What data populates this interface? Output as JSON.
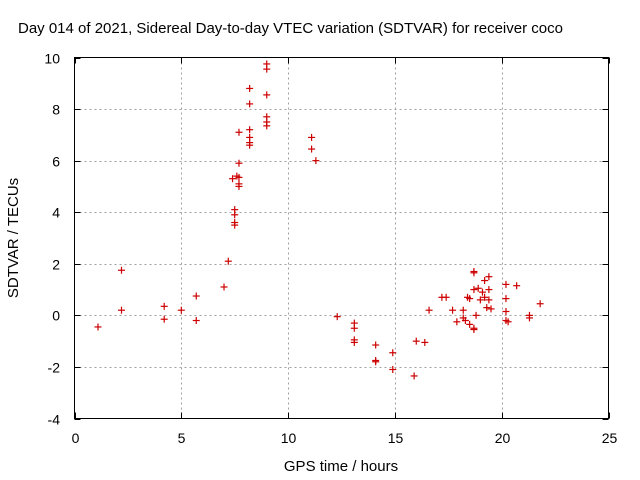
{
  "chart_data": {
    "type": "scatter",
    "title": "Day 014 of 2021, Sidereal Day-to-day VTEC variation (SDTVAR) for receiver coco",
    "xlabel": "GPS time / hours",
    "ylabel": "SDTVAR / TECUs",
    "xlim": [
      0,
      25
    ],
    "ylim": [
      -4,
      10
    ],
    "xticks": [
      0,
      5,
      10,
      15,
      20,
      25
    ],
    "yticks": [
      -4,
      -2,
      0,
      2,
      4,
      6,
      8,
      10
    ],
    "grid": true,
    "marker": "+",
    "color": "#cc0000",
    "series": [
      {
        "name": "SDTVAR",
        "points": [
          [
            1.1,
            -0.45
          ],
          [
            2.2,
            1.75
          ],
          [
            2.2,
            0.2
          ],
          [
            4.2,
            0.35
          ],
          [
            4.2,
            -0.15
          ],
          [
            5.0,
            0.2
          ],
          [
            5.7,
            0.75
          ],
          [
            5.7,
            -0.2
          ],
          [
            7.0,
            1.1
          ],
          [
            7.2,
            2.1
          ],
          [
            7.4,
            5.3
          ],
          [
            7.5,
            4.1
          ],
          [
            7.5,
            3.9
          ],
          [
            7.5,
            3.6
          ],
          [
            7.5,
            3.5
          ],
          [
            7.6,
            5.4
          ],
          [
            7.7,
            5.9
          ],
          [
            7.7,
            5.35
          ],
          [
            7.7,
            5.1
          ],
          [
            7.7,
            5.0
          ],
          [
            7.7,
            7.1
          ],
          [
            8.2,
            8.8
          ],
          [
            8.2,
            8.2
          ],
          [
            8.2,
            7.2
          ],
          [
            8.2,
            6.9
          ],
          [
            8.2,
            6.7
          ],
          [
            8.2,
            6.6
          ],
          [
            9.0,
            9.75
          ],
          [
            9.0,
            9.55
          ],
          [
            9.0,
            8.55
          ],
          [
            9.0,
            7.7
          ],
          [
            9.0,
            7.5
          ],
          [
            9.0,
            7.35
          ],
          [
            11.1,
            6.9
          ],
          [
            11.1,
            6.45
          ],
          [
            11.3,
            6.0
          ],
          [
            12.3,
            -0.05
          ],
          [
            13.1,
            -0.3
          ],
          [
            13.1,
            -0.5
          ],
          [
            13.1,
            -0.95
          ],
          [
            13.1,
            -1.05
          ],
          [
            14.1,
            -1.15
          ],
          [
            14.1,
            -1.75
          ],
          [
            14.1,
            -1.8
          ],
          [
            14.9,
            -1.45
          ],
          [
            14.9,
            -2.1
          ],
          [
            15.9,
            -2.35
          ],
          [
            16.0,
            -1.0
          ],
          [
            16.4,
            -1.05
          ],
          [
            16.6,
            0.2
          ],
          [
            17.2,
            0.7
          ],
          [
            17.4,
            0.7
          ],
          [
            17.7,
            0.2
          ],
          [
            17.9,
            -0.25
          ],
          [
            18.2,
            0.2
          ],
          [
            18.2,
            -0.1
          ],
          [
            18.3,
            -0.2
          ],
          [
            18.4,
            0.7
          ],
          [
            18.5,
            0.65
          ],
          [
            18.5,
            -0.35
          ],
          [
            18.7,
            1.7
          ],
          [
            18.7,
            1.65
          ],
          [
            18.7,
            1.0
          ],
          [
            18.7,
            -0.5
          ],
          [
            18.7,
            -0.55
          ],
          [
            18.8,
            0.0
          ],
          [
            18.9,
            1.05
          ],
          [
            19.0,
            0.6
          ],
          [
            19.1,
            0.9
          ],
          [
            19.2,
            1.35
          ],
          [
            19.2,
            0.7
          ],
          [
            19.3,
            0.3
          ],
          [
            19.4,
            1.5
          ],
          [
            19.4,
            1.0
          ],
          [
            19.4,
            0.6
          ],
          [
            19.5,
            0.25
          ],
          [
            20.2,
            1.2
          ],
          [
            20.2,
            0.65
          ],
          [
            20.2,
            0.15
          ],
          [
            20.2,
            -0.2
          ],
          [
            20.3,
            -0.25
          ],
          [
            20.7,
            1.15
          ],
          [
            21.3,
            0.0
          ],
          [
            21.3,
            -0.1
          ],
          [
            21.8,
            0.45
          ]
        ]
      }
    ]
  }
}
